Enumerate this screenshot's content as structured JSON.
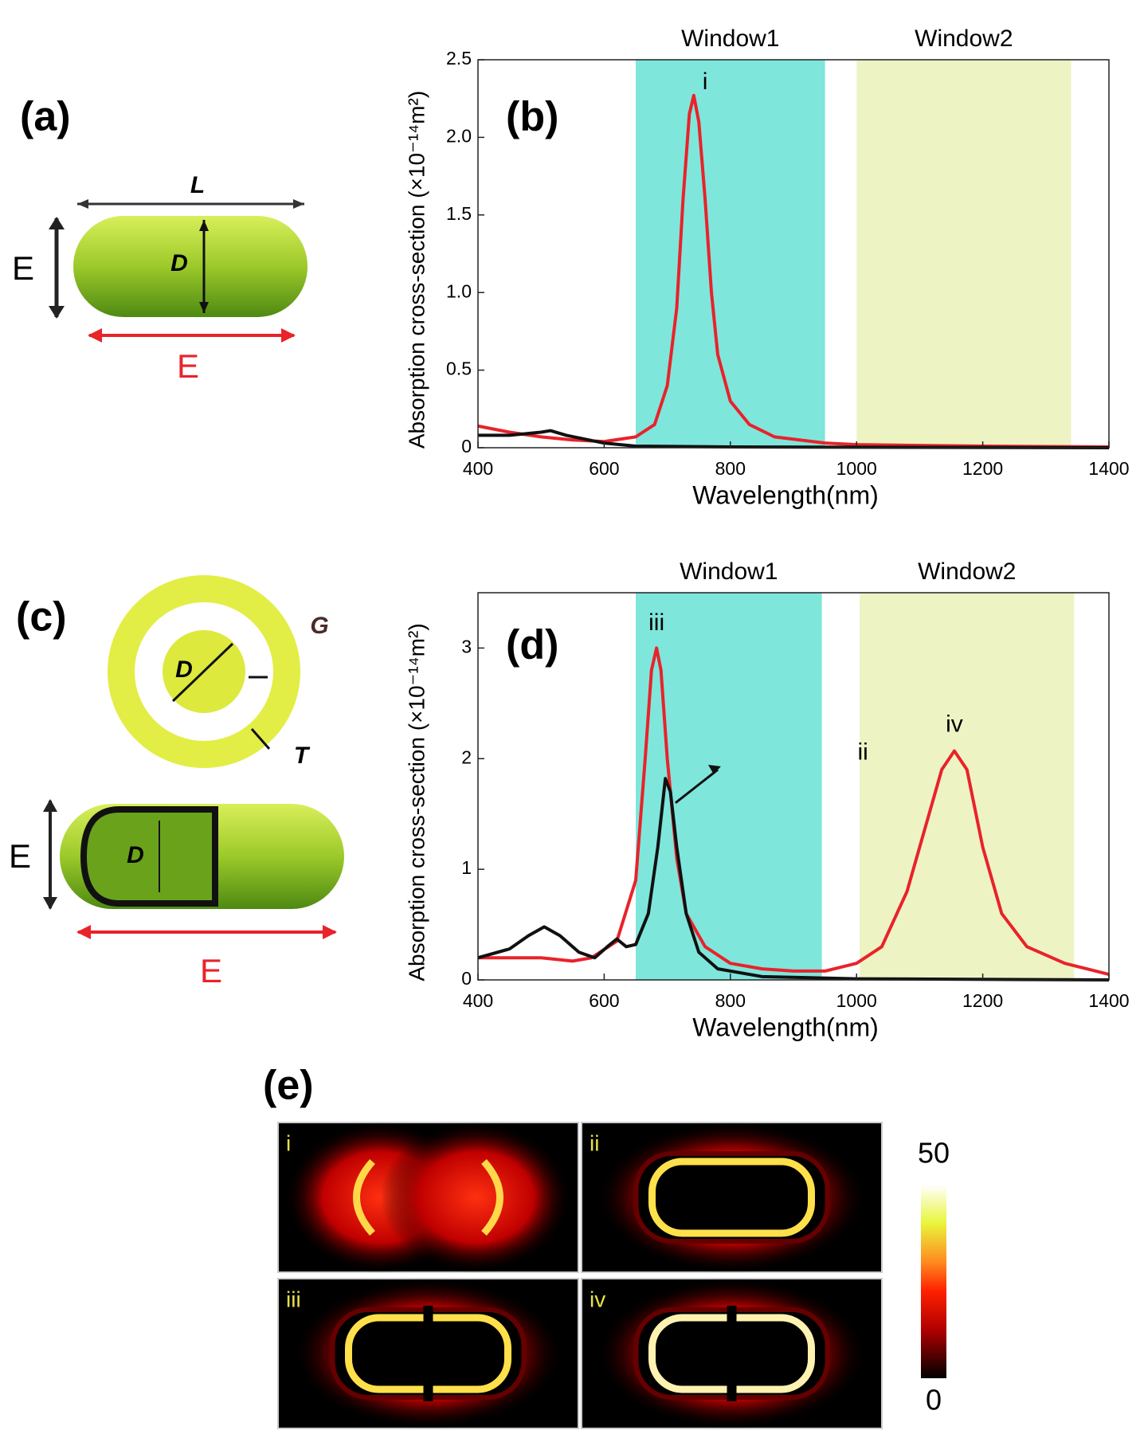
{
  "panels": {
    "a": "(a)",
    "b": "(b)",
    "c": "(c)",
    "d": "(d)",
    "e": "(e)"
  },
  "diagram_a": {
    "length": "L",
    "diameter": "D",
    "field_vertical": "E",
    "field_horizontal": "E"
  },
  "diagram_c": {
    "gap": "G",
    "thickness": "T",
    "diameter": "D",
    "diameter_side": "D",
    "field_vertical": "E",
    "field_horizontal": "E"
  },
  "chart_data": [
    {
      "type": "line",
      "xlabel": "Wavelength(nm)",
      "ylabel": "Absorption cross-section (×10⁻¹⁴m²)",
      "xlim": [
        400,
        1400
      ],
      "xticks": [
        400,
        600,
        800,
        1000,
        1200,
        1400
      ],
      "ylim": [
        0,
        2.5
      ],
      "yticks": [
        0,
        0.5,
        {
          "value": 1,
          "label": "1.0"
        },
        1.5,
        {
          "value": 2,
          "label": "2.0"
        },
        2.5
      ],
      "bands": [
        {
          "name": "Window1",
          "range": [
            650,
            950
          ],
          "color": "#7fe6dc"
        },
        {
          "name": "Window2",
          "range": [
            1000,
            1340
          ],
          "color": "#eef3c4"
        }
      ],
      "annotations": [
        "i"
      ],
      "series": [
        {
          "color": "#e8232a",
          "x": [
            400,
            450,
            500,
            550,
            600,
            650,
            680,
            700,
            715,
            725,
            735,
            742,
            750,
            760,
            770,
            780,
            800,
            830,
            870,
            950,
            1000,
            1200,
            1400
          ],
          "values": [
            0.14,
            0.1,
            0.07,
            0.05,
            0.04,
            0.07,
            0.15,
            0.4,
            0.9,
            1.6,
            2.15,
            2.27,
            2.1,
            1.6,
            1.0,
            0.6,
            0.3,
            0.15,
            0.07,
            0.03,
            0.02,
            0.01,
            0.005
          ]
        },
        {
          "color": "#111111",
          "x": [
            400,
            450,
            500,
            515,
            540,
            600,
            650,
            800,
            1400
          ],
          "values": [
            0.08,
            0.08,
            0.1,
            0.11,
            0.08,
            0.03,
            0.01,
            0.005,
            0
          ]
        }
      ]
    },
    {
      "type": "line",
      "xlabel": "Wavelength(nm)",
      "ylabel": "Absorption cross-section (×10⁻¹⁴m²)",
      "xlim": [
        400,
        1400
      ],
      "xticks": [
        400,
        600,
        800,
        1000,
        1200,
        1400
      ],
      "ylim": [
        0,
        3.5
      ],
      "yticks": [
        0,
        1,
        2,
        3
      ],
      "bands": [
        {
          "name": "Window1",
          "range": [
            650,
            945
          ],
          "color": "#7fe6dc"
        },
        {
          "name": "Window2",
          "range": [
            1005,
            1345
          ],
          "color": "#eef3c4"
        }
      ],
      "annotations": [
        "iii",
        "ii",
        "iv"
      ],
      "series": [
        {
          "color": "#e8232a",
          "x": [
            400,
            450,
            500,
            550,
            580,
            620,
            650,
            665,
            675,
            683,
            690,
            700,
            715,
            730,
            760,
            800,
            850,
            900,
            950,
            1000,
            1040,
            1080,
            1110,
            1135,
            1155,
            1175,
            1200,
            1230,
            1270,
            1330,
            1400
          ],
          "values": [
            0.2,
            0.2,
            0.2,
            0.17,
            0.2,
            0.35,
            0.9,
            2.0,
            2.8,
            3.0,
            2.8,
            2.0,
            1.1,
            0.6,
            0.3,
            0.15,
            0.1,
            0.08,
            0.08,
            0.15,
            0.3,
            0.8,
            1.4,
            1.9,
            2.07,
            1.9,
            1.2,
            0.6,
            0.3,
            0.15,
            0.05
          ]
        },
        {
          "color": "#111111",
          "x": [
            400,
            450,
            480,
            505,
            530,
            560,
            585,
            605,
            620,
            635,
            650,
            670,
            685,
            697,
            705,
            715,
            730,
            750,
            780,
            850,
            1000,
            1400
          ],
          "values": [
            0.2,
            0.28,
            0.4,
            0.48,
            0.4,
            0.25,
            0.2,
            0.3,
            0.37,
            0.3,
            0.32,
            0.6,
            1.2,
            1.82,
            1.7,
            1.2,
            0.6,
            0.25,
            0.1,
            0.03,
            0.01,
            0
          ]
        }
      ]
    }
  ],
  "field_maps": {
    "labels": [
      "i",
      "ii",
      "iii",
      "iv"
    ],
    "colorbar": {
      "ticks": [
        0,
        50
      ]
    }
  }
}
